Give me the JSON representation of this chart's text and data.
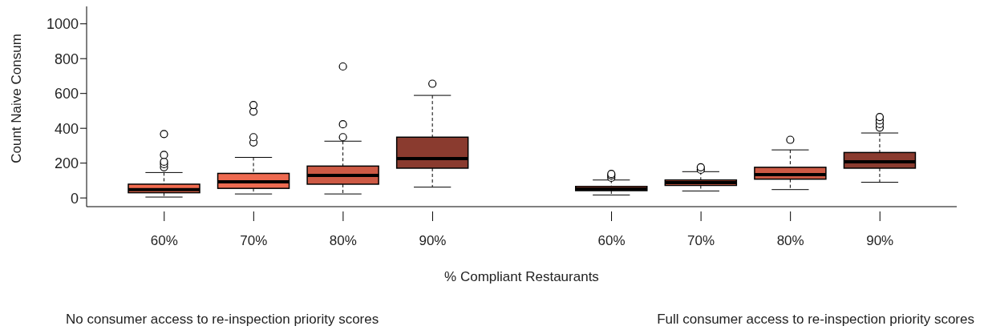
{
  "chart_data": {
    "type": "box",
    "ylabel": "Count Naive Consum",
    "xlabel": "% Compliant Restaurants",
    "categories": [
      "60%",
      "70%",
      "80%",
      "90%",
      null,
      "60%",
      "70%",
      "80%",
      "90%"
    ],
    "colors": [
      "#f26b4f",
      "#ee6a50",
      "#cd5a45",
      "#8a3b2f",
      null,
      "#f26b4f",
      "#ee6a50",
      "#cd5a45",
      "#8a3b2f"
    ],
    "boxes": [
      {
        "low": 5,
        "q1": 30,
        "median": 48,
        "q3": 79,
        "high": 146,
        "outliers": [
          176,
          194,
          208,
          247,
          367
        ]
      },
      {
        "low": 23,
        "q1": 55,
        "median": 93,
        "q3": 141,
        "high": 233,
        "outliers": [
          319,
          349,
          496,
          534
        ]
      },
      {
        "low": 23,
        "q1": 79,
        "median": 129,
        "q3": 183,
        "high": 326,
        "outliers": [
          349,
          423,
          755
        ]
      },
      {
        "low": 62,
        "q1": 171,
        "median": 226,
        "q3": 349,
        "high": 589,
        "outliers": [
          656
        ]
      },
      null,
      {
        "low": 17,
        "q1": 42,
        "median": 51,
        "q3": 66,
        "high": 103,
        "outliers": [
          116,
          129,
          138
        ]
      },
      {
        "low": 40,
        "q1": 72,
        "median": 88,
        "q3": 103,
        "high": 151,
        "outliers": [
          162,
          176
        ]
      },
      {
        "low": 48,
        "q1": 108,
        "median": 134,
        "q3": 176,
        "high": 276,
        "outliers": [
          334
        ]
      },
      {
        "low": 90,
        "q1": 171,
        "median": 208,
        "q3": 261,
        "high": 373,
        "outliers": [
          404,
          424,
          445,
          465
        ]
      }
    ],
    "ylim": [
      -50,
      1100
    ],
    "yticks": [
      0,
      200,
      400,
      600,
      800,
      1000
    ],
    "annotations": [
      "No consumer access to re-inspection priority scores",
      "Full consumer access to re-inspection priority scores"
    ]
  }
}
